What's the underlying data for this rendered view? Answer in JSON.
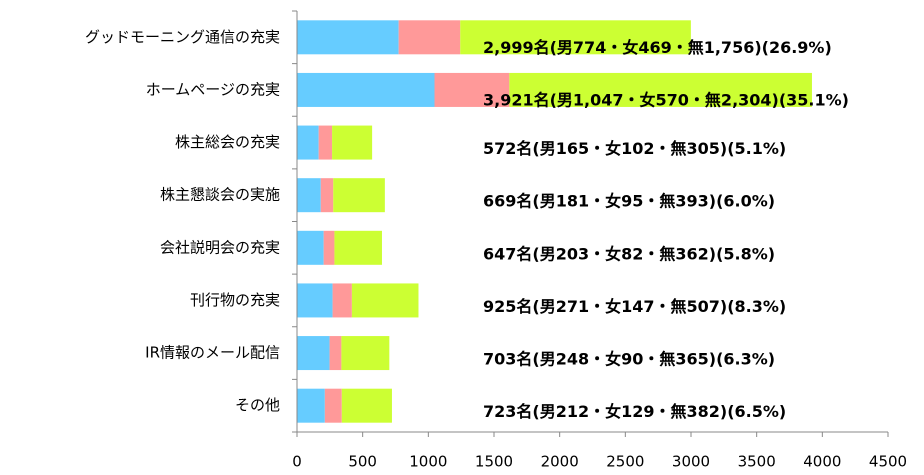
{
  "chart_data": {
    "type": "stacked_bar_horizontal",
    "categories": [
      "グッドモーニング通信の充実",
      "ホームページの充実",
      "株主総会の充実",
      "株主懇談会の実施",
      "会社説明会の充実",
      "刊行物の充実",
      "IR情報のメール配信",
      "その他"
    ],
    "series": [
      {
        "color": "#66ccff",
        "values": [
          774,
          1047,
          165,
          181,
          203,
          271,
          248,
          212
        ]
      },
      {
        "color": "#ff9999",
        "values": [
          469,
          570,
          102,
          95,
          82,
          147,
          90,
          129
        ]
      },
      {
        "color": "#ccff33",
        "values": [
          1756,
          2304,
          305,
          393,
          362,
          507,
          365,
          382
        ]
      }
    ],
    "labels": [
      "2,999名(男774・女469・無1,756)(26.9%)",
      "3,921名(男1,047・女570・無2,304)(35.1%)",
      "572名(男165・女102・無305)(5.1%)",
      "669名(男181・女95・無393)(6.0%)",
      "647名(男203・女82・無362)(5.8%)",
      "925名(男271・女147・無507)(8.3%)",
      "703名(男248・女90・無365)(6.3%)",
      "723名(男212・女129・無382)(6.5%)"
    ],
    "xlim": [
      0,
      4500
    ],
    "xticks": [
      0,
      500,
      1000,
      1500,
      2000,
      2500,
      3000,
      3500,
      4000,
      4500
    ]
  }
}
